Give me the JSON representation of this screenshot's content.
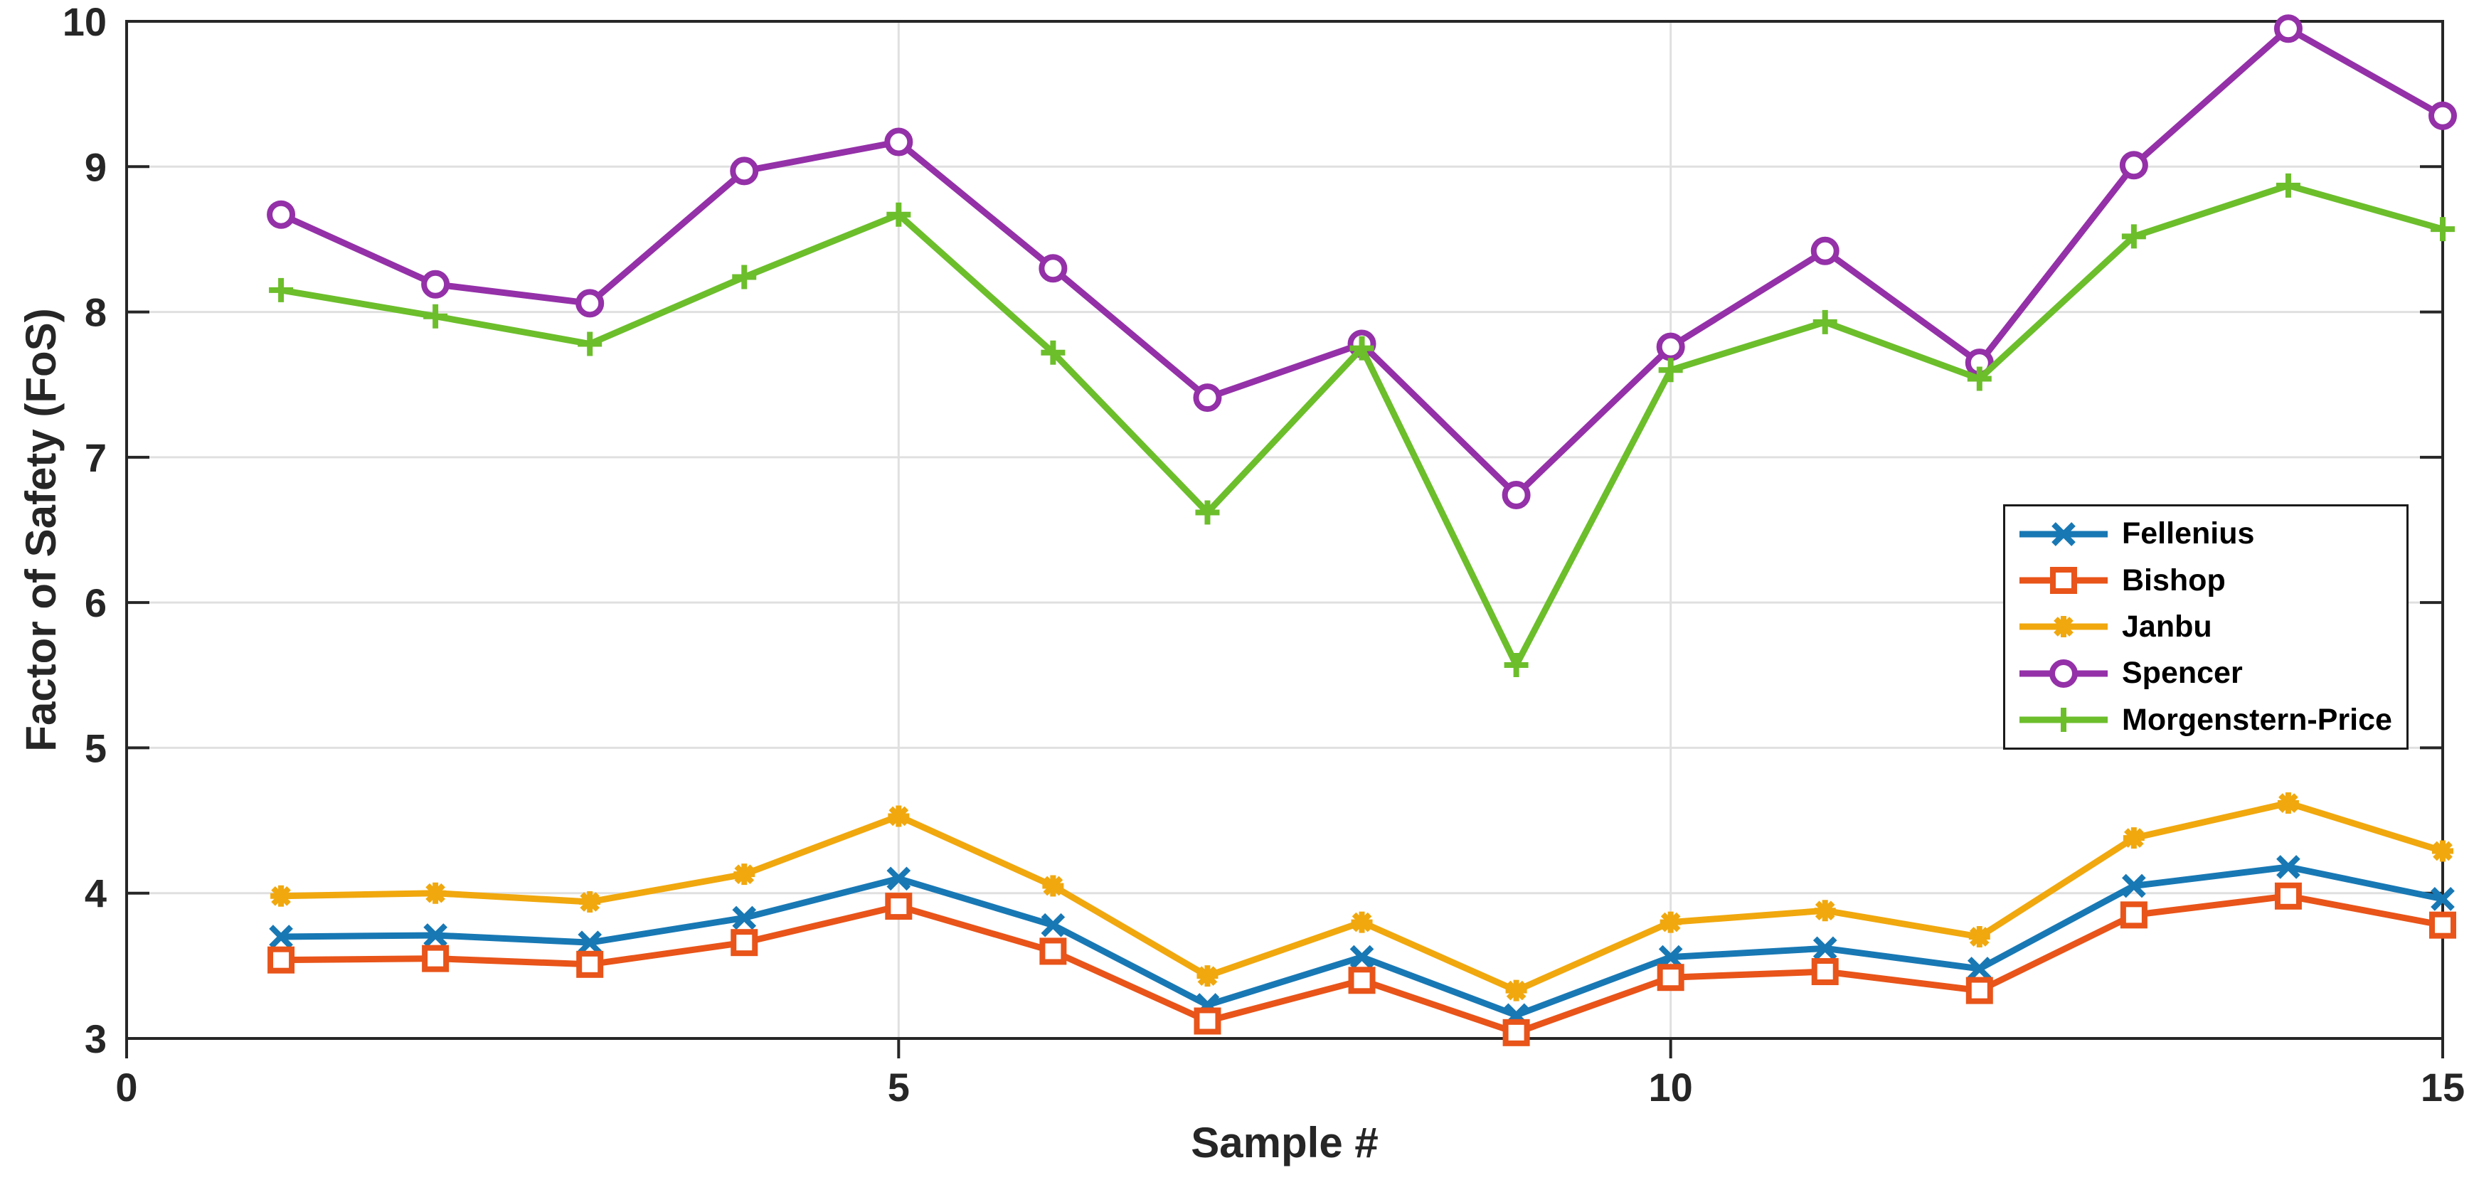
{
  "figure": {
    "background": "#ffffff",
    "axis_color": "#262626",
    "grid_color": "#e0e0e0"
  },
  "chart_data": {
    "type": "line",
    "title": "",
    "xlabel": "Sample #",
    "ylabel": "Factor of Safety (FoS)",
    "xlim": [
      0,
      15
    ],
    "ylim": [
      3,
      10
    ],
    "xticks": [
      0,
      5,
      10,
      15
    ],
    "yticks": [
      3,
      4,
      5,
      6,
      7,
      8,
      9,
      10
    ],
    "grid": true,
    "legend_position": "right-center",
    "x": [
      1,
      2,
      3,
      4,
      5,
      6,
      7,
      8,
      9,
      10,
      11,
      12,
      13,
      14,
      15
    ],
    "series": [
      {
        "name": "Fellenius",
        "color": "#1878B4",
        "marker": "x",
        "values": [
          3.7,
          3.71,
          3.66,
          3.83,
          4.1,
          3.78,
          3.23,
          3.56,
          3.16,
          3.56,
          3.62,
          3.48,
          4.05,
          4.18,
          3.96
        ]
      },
      {
        "name": "Bishop",
        "color": "#E85419",
        "marker": "square",
        "values": [
          3.54,
          3.55,
          3.51,
          3.66,
          3.91,
          3.6,
          3.12,
          3.4,
          3.04,
          3.42,
          3.46,
          3.33,
          3.85,
          3.98,
          3.78
        ]
      },
      {
        "name": "Janbu",
        "color": "#F0A80E",
        "marker": "asterisk",
        "values": [
          3.98,
          4.0,
          3.94,
          4.13,
          4.53,
          4.05,
          3.43,
          3.8,
          3.33,
          3.8,
          3.88,
          3.7,
          4.38,
          4.62,
          4.29
        ]
      },
      {
        "name": "Spencer",
        "color": "#9430A8",
        "marker": "circle",
        "values": [
          8.67,
          8.19,
          8.06,
          8.97,
          9.17,
          8.3,
          7.41,
          7.78,
          6.74,
          7.76,
          8.42,
          7.65,
          9.01,
          9.95,
          9.35
        ]
      },
      {
        "name": "Morgenstern-Price",
        "color": "#6CBE2B",
        "marker": "plus",
        "values": [
          8.15,
          7.97,
          7.78,
          8.24,
          8.67,
          7.72,
          6.62,
          7.75,
          5.57,
          7.6,
          7.93,
          7.54,
          8.52,
          8.87,
          8.57
        ]
      }
    ]
  }
}
